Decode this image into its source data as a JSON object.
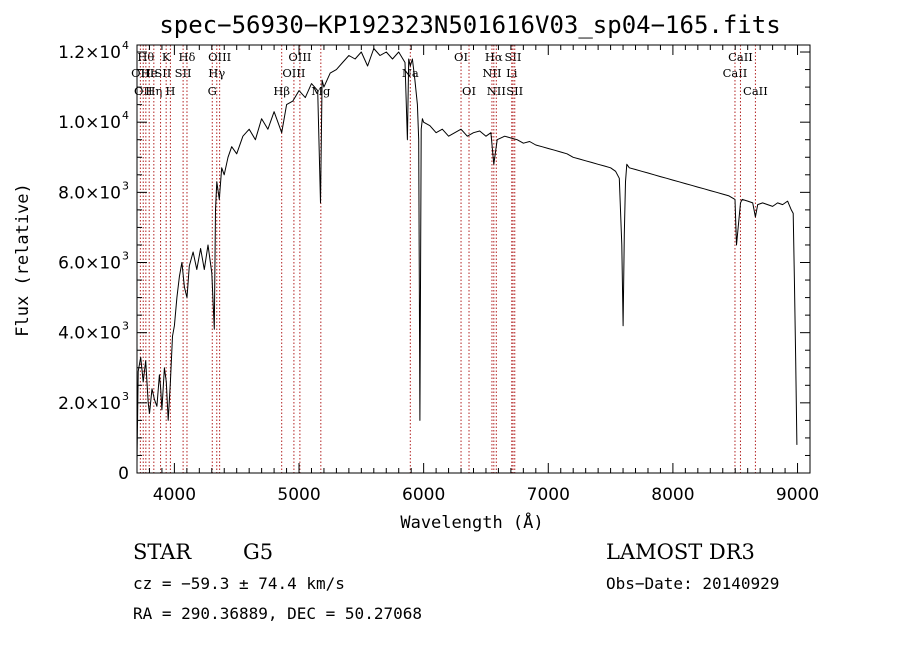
{
  "chart_data": {
    "type": "line",
    "title": "spec−56930−KP192323N501616V03_sp04−165.fits",
    "xlabel": "Wavelength (Å)",
    "ylabel": "Flux (relative)",
    "xlim": [
      3700,
      9100
    ],
    "ylim": [
      0,
      12200
    ],
    "grid": false,
    "x_ticks": [
      {
        "value": 4000,
        "label": "4000"
      },
      {
        "value": 5000,
        "label": "5000"
      },
      {
        "value": 6000,
        "label": "6000"
      },
      {
        "value": 7000,
        "label": "7000"
      },
      {
        "value": 8000,
        "label": "8000"
      },
      {
        "value": 9000,
        "label": "9000"
      }
    ],
    "y_ticks": [
      {
        "value": 0,
        "mantissa": "0",
        "exponent": ""
      },
      {
        "value": 2000,
        "mantissa": "2.0×10",
        "exponent": "3"
      },
      {
        "value": 4000,
        "mantissa": "4.0×10",
        "exponent": "3"
      },
      {
        "value": 6000,
        "mantissa": "6.0×10",
        "exponent": "3"
      },
      {
        "value": 8000,
        "mantissa": "8.0×10",
        "exponent": "3"
      },
      {
        "value": 10000,
        "mantissa": "1.0×10",
        "exponent": "4"
      },
      {
        "value": 12000,
        "mantissa": "1.2×10",
        "exponent": "4"
      }
    ],
    "series": [
      {
        "color": "#000000",
        "x": [
          3700,
          3710,
          3730,
          3750,
          3770,
          3790,
          3800,
          3820,
          3840,
          3860,
          3880,
          3890,
          3900,
          3920,
          3935,
          3950,
          3968,
          3985,
          4000,
          4020,
          4040,
          4060,
          4080,
          4101,
          4120,
          4150,
          4180,
          4210,
          4240,
          4270,
          4300,
          4320,
          4330,
          4340,
          4360,
          4380,
          4400,
          4430,
          4460,
          4500,
          4550,
          4600,
          4650,
          4700,
          4750,
          4800,
          4861,
          4900,
          4950,
          5000,
          5050,
          5100,
          5150,
          5172,
          5185,
          5200,
          5250,
          5300,
          5350,
          5400,
          5450,
          5500,
          5550,
          5600,
          5650,
          5700,
          5750,
          5800,
          5850,
          5870,
          5880,
          5893,
          5910,
          5930,
          5950,
          5960,
          5970,
          5980,
          5990,
          6000,
          6050,
          6100,
          6150,
          6200,
          6250,
          6300,
          6350,
          6400,
          6450,
          6500,
          6540,
          6563,
          6590,
          6650,
          6700,
          6750,
          6800,
          6850,
          6900,
          6950,
          7000,
          7050,
          7100,
          7150,
          7200,
          7250,
          7300,
          7350,
          7400,
          7450,
          7500,
          7540,
          7570,
          7590,
          7600,
          7610,
          7620,
          7630,
          7650,
          7700,
          7750,
          7800,
          7850,
          7900,
          7950,
          8000,
          8050,
          8100,
          8150,
          8200,
          8250,
          8300,
          8350,
          8400,
          8450,
          8498,
          8510,
          8542,
          8555,
          8600,
          8640,
          8662,
          8680,
          8720,
          8760,
          8800,
          8840,
          8880,
          8920,
          8950,
          8965,
          8975,
          8985,
          8995
        ],
        "y": [
          300,
          2900,
          3300,
          2600,
          3200,
          2000,
          1700,
          2400,
          2100,
          1900,
          2800,
          2400,
          1800,
          3000,
          2600,
          1500,
          2600,
          3900,
          4200,
          5000,
          5600,
          6000,
          5300,
          5000,
          5900,
          6300,
          5800,
          6400,
          5800,
          6500,
          5700,
          4100,
          7500,
          8300,
          7800,
          8700,
          8500,
          9000,
          9300,
          9100,
          9600,
          9800,
          9500,
          10100,
          9800,
          10300,
          9700,
          10500,
          10600,
          10900,
          10700,
          11100,
          10900,
          7700,
          11200,
          11000,
          11400,
          11500,
          11700,
          11900,
          11800,
          12000,
          11600,
          12100,
          11900,
          12000,
          11800,
          12000,
          11700,
          9500,
          11800,
          11600,
          11800,
          11200,
          10500,
          9500,
          1500,
          9800,
          10100,
          10000,
          9900,
          9700,
          9800,
          9600,
          9700,
          9800,
          9600,
          9700,
          9750,
          9600,
          9700,
          8800,
          9500,
          9600,
          9550,
          9500,
          9400,
          9450,
          9350,
          9300,
          9250,
          9200,
          9150,
          9100,
          9000,
          8950,
          8900,
          8850,
          8800,
          8750,
          8700,
          8600,
          8400,
          6500,
          4200,
          6800,
          8300,
          8800,
          8700,
          8650,
          8600,
          8550,
          8500,
          8450,
          8400,
          8350,
          8300,
          8250,
          8200,
          8150,
          8100,
          8050,
          8000,
          7950,
          7900,
          7800,
          6500,
          7700,
          7800,
          7750,
          7700,
          7300,
          7650,
          7700,
          7650,
          7600,
          7700,
          7650,
          7750,
          7500,
          7400,
          5500,
          3200,
          800
        ]
      }
    ],
    "annotations": [
      {
        "wavelength": 3727,
        "label": "OII",
        "row": 2
      },
      {
        "wavelength": 3750,
        "label": "OII",
        "row": 3
      },
      {
        "wavelength": 3771,
        "label": "Hθ",
        "row": 1
      },
      {
        "wavelength": 3798,
        "label": "He",
        "row": 2
      },
      {
        "wavelength": 3835,
        "label": "Hη",
        "row": 3
      },
      {
        "wavelength": 3889,
        "label": "ISII",
        "row": 2
      },
      {
        "wavelength": 3934,
        "label": "K",
        "row": 1
      },
      {
        "wavelength": 3968,
        "label": "H",
        "row": 3
      },
      {
        "wavelength": 4070,
        "label": "SII",
        "row": 2
      },
      {
        "wavelength": 4101,
        "label": "Hδ",
        "row": 1
      },
      {
        "wavelength": 4304,
        "label": "G",
        "row": 3
      },
      {
        "wavelength": 4340,
        "label": "Hγ",
        "row": 2
      },
      {
        "wavelength": 4363,
        "label": "OIII",
        "row": 1
      },
      {
        "wavelength": 4861,
        "label": "Hβ",
        "row": 3
      },
      {
        "wavelength": 4959,
        "label": "OIII",
        "row": 2
      },
      {
        "wavelength": 5007,
        "label": "OIII",
        "row": 1
      },
      {
        "wavelength": 5175,
        "label": "Mg",
        "row": 3
      },
      {
        "wavelength": 5893,
        "label": "Na",
        "row": 2
      },
      {
        "wavelength": 6300,
        "label": "OI",
        "row": 1
      },
      {
        "wavelength": 6364,
        "label": "OI",
        "row": 3
      },
      {
        "wavelength": 6548,
        "label": "NII",
        "row": 2
      },
      {
        "wavelength": 6563,
        "label": "Hα",
        "row": 1
      },
      {
        "wavelength": 6583,
        "label": "NII",
        "row": 3
      },
      {
        "wavelength": 6707,
        "label": "Li",
        "row": 2
      },
      {
        "wavelength": 6717,
        "label": "SII",
        "row": 1
      },
      {
        "wavelength": 6731,
        "label": "SII",
        "row": 3
      },
      {
        "wavelength": 8498,
        "label": "CaII",
        "row": 2
      },
      {
        "wavelength": 8542,
        "label": "CaII",
        "row": 1
      },
      {
        "wavelength": 8662,
        "label": "CaII",
        "row": 3
      }
    ]
  },
  "info": {
    "object_class": "STAR",
    "subclass": "G5",
    "survey": "LAMOST DR3",
    "redshift": "cz = −59.3 ± 74.4 km/s",
    "obs_date": "Obs−Date: 20140929",
    "coords": "RA = 290.36889, DEC =  50.27068"
  },
  "colors": {
    "spectrum": "#000000",
    "line_marker": "#b22222",
    "background": "#ffffff"
  }
}
